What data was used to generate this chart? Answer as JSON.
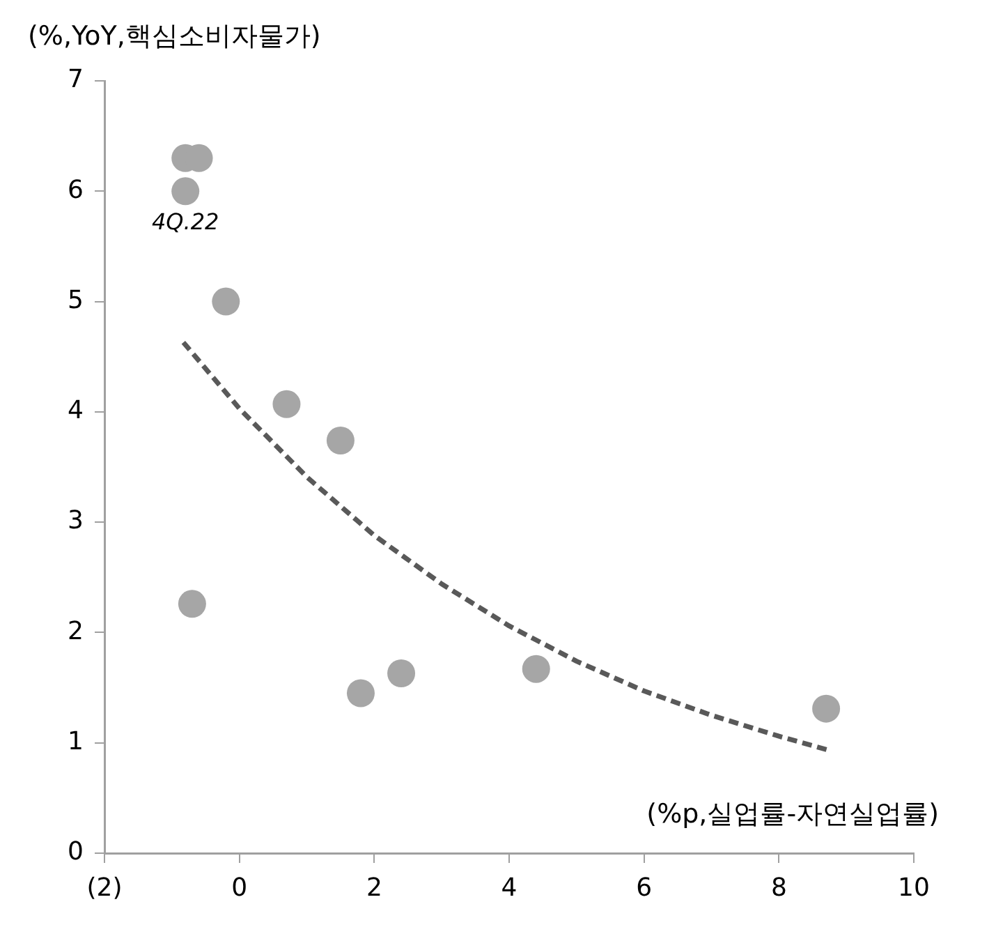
{
  "chart_data": {
    "type": "scatter",
    "ylabel": "(%,YoY,핵심소비자물가)",
    "xlabel": "(%p,실업률-자연실업률)",
    "xlim": [
      -2,
      10
    ],
    "xticks": [
      {
        "value": -2,
        "label": "(2)"
      },
      0,
      2,
      4,
      6,
      8,
      10
    ],
    "ylim": [
      0,
      7
    ],
    "yticks": [
      0,
      1,
      2,
      3,
      4,
      5,
      6,
      7
    ],
    "grid": false,
    "legend": false,
    "annotations": [
      {
        "text": "4Q.22",
        "x": -0.8,
        "y": 6.0
      }
    ],
    "series": [
      {
        "type": "scatter",
        "color": "#a6a6a6",
        "marker": "circle",
        "x": [
          -0.8,
          -0.6,
          -0.8,
          -0.2,
          0.7,
          1.5,
          -0.7,
          1.8,
          2.4,
          4.4,
          8.7
        ],
        "values": [
          6.3,
          6.3,
          6.0,
          5.0,
          4.07,
          3.74,
          2.26,
          1.45,
          1.63,
          1.67,
          1.31
        ]
      },
      {
        "type": "line",
        "color": "#595959",
        "marker": "none",
        "line_style": "dashed",
        "x": [
          -0.83,
          0,
          1,
          2,
          3,
          4,
          5,
          6,
          7,
          8,
          8.76
        ],
        "values": [
          4.63,
          4.03,
          3.41,
          2.88,
          2.44,
          2.06,
          1.74,
          1.47,
          1.25,
          1.06,
          0.93
        ]
      }
    ]
  }
}
